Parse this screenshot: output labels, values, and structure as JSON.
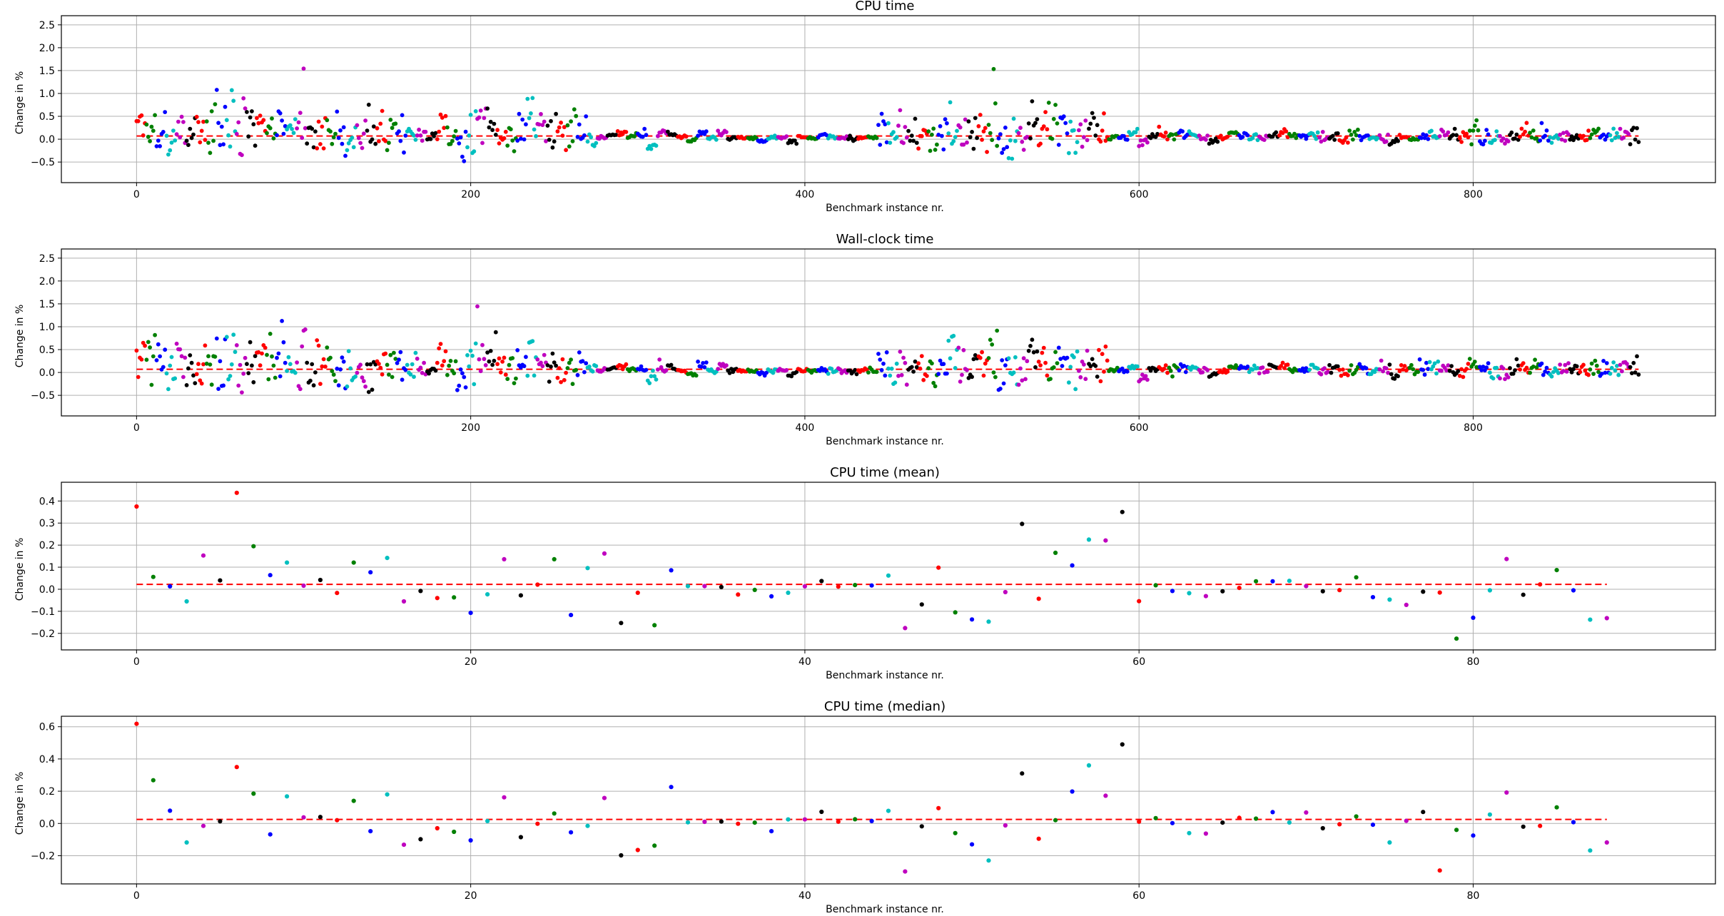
{
  "colors": {
    "palette": [
      "#ff0000",
      "#008000",
      "#0000ff",
      "#00bfbf",
      "#bf00bf",
      "#000000"
    ],
    "reference_line": "#ff0000",
    "grid": "#b0b0b0"
  },
  "chart_data": [
    {
      "type": "scatter",
      "title": "CPU time",
      "xlabel": "Benchmark instance nr.",
      "ylabel": "Change in %",
      "xlim": [
        -45,
        945
      ],
      "ylim": [
        -0.95,
        2.7
      ],
      "xticks": [
        0,
        200,
        400,
        600,
        800
      ],
      "yticks": [
        -0.5,
        0.0,
        0.5,
        1.0,
        1.5,
        2.0,
        2.5
      ],
      "ytick_labels": [
        "−0.5",
        "0.0",
        "0.5",
        "1.0",
        "1.5",
        "2.0",
        "2.5"
      ],
      "grid": true,
      "reference_line": 0.07,
      "n_points": 900,
      "groups": 150,
      "group_size": 6,
      "color_cycle": [
        "#ff0000",
        "#008000",
        "#0000ff",
        "#00bfbf",
        "#bf00bf",
        "#000000"
      ],
      "group_means": [
        0.47,
        0.26,
        0.26,
        0.03,
        0.21,
        0.19,
        0.14,
        0.18,
        0.39,
        0.26,
        0.22,
        0.17,
        0.19,
        0.18,
        0.26,
        0.11,
        0.24,
        -0.01,
        0.13,
        0.15,
        0.06,
        -0.05,
        0.13,
        0.15,
        0.21,
        0.14,
        0.14,
        0.1,
        0.16,
        0.02,
        0.12,
        -0.03,
        -0.06,
        0.17,
        0.3,
        0.35,
        0.1,
        0.0,
        0.23,
        0.49,
        0.28,
        0.17,
        0.16,
        0.21,
        0.17,
        0.02,
        0.06,
        0.09,
        0.13,
        0.06,
        0.08,
        -0.15,
        0.09,
        0.13,
        0.04,
        -0.04,
        0.13,
        0.03,
        0.13,
        0.02,
        0.03,
        0.03,
        -0.03,
        0.05,
        0.04,
        -0.05,
        0.03,
        0.02,
        0.07,
        0.04,
        0.04,
        -0.01,
        0.04,
        0.05,
        0.2,
        0.03,
        0.04,
        0.02,
        0.08,
        0.06,
        0.08,
        0.35,
        0.21,
        0.11,
        0.12,
        0.21,
        -0.01,
        0.02,
        0.0,
        0.3,
        0.2,
        0.26,
        0.3,
        0.05,
        0.07,
        0.26,
        0.17,
        0.04,
        0.04,
        0.11,
        -0.1,
        0.07,
        0.08,
        0.05,
        0.1,
        0.07,
        0.04,
        -0.06,
        0.03,
        0.13,
        0.07,
        0.09,
        0.04,
        0.12,
        0.13,
        0.09,
        0.03,
        0.09,
        0.01,
        0.07,
        -0.04,
        0.09,
        0.06,
        0.02,
        0.04,
        -0.05,
        0.06,
        0.05,
        0.06,
        0.1,
        0.1,
        0.05,
        0.09,
        0.11,
        0.04,
        0.05,
        0.0,
        0.05,
        0.1,
        0.09,
        0.09,
        0.01,
        0.06,
        0.07,
        0.06,
        0.08,
        0.06,
        0.08,
        0.09,
        0.07
      ],
      "group_spreads": [
        0.39,
        0.43,
        0.41,
        0.33,
        0.38,
        0.33,
        0.33,
        0.34,
        0.53,
        0.6,
        0.48,
        0.42,
        0.35,
        0.33,
        0.36,
        0.31,
        0.53,
        0.27,
        0.32,
        0.28,
        0.4,
        0.26,
        0.38,
        0.41,
        0.34,
        0.31,
        0.39,
        0.24,
        0.16,
        0.09,
        0.36,
        0.35,
        0.33,
        0.4,
        0.39,
        0.43,
        0.28,
        0.31,
        0.4,
        0.5,
        0.3,
        0.33,
        0.3,
        0.35,
        0.35,
        0.2,
        0.04,
        0.02,
        0.04,
        0.03,
        0.05,
        0.06,
        0.08,
        0.06,
        0.04,
        0.05,
        0.05,
        0.03,
        0.05,
        0.03,
        0.02,
        0.03,
        0.03,
        0.04,
        0.03,
        0.04,
        0.03,
        0.02,
        0.04,
        0.04,
        0.04,
        0.04,
        0.03,
        0.05,
        0.28,
        0.28,
        0.31,
        0.24,
        0.35,
        0.35,
        0.32,
        0.45,
        0.36,
        0.38,
        0.35,
        0.39,
        0.35,
        0.38,
        0.33,
        0.42,
        0.41,
        0.39,
        0.48,
        0.32,
        0.29,
        0.28,
        0.34,
        0.06,
        0.04,
        0.05,
        0.07,
        0.04,
        0.1,
        0.09,
        0.07,
        0.05,
        0.06,
        0.06,
        0.06,
        0.03,
        0.06,
        0.09,
        0.06,
        0.06,
        0.07,
        0.06,
        0.06,
        0.06,
        0.05,
        0.09,
        0.05,
        0.09,
        0.07,
        0.06,
        0.09,
        0.07,
        0.07,
        0.08,
        0.09,
        0.1,
        0.09,
        0.08,
        0.14,
        0.17,
        0.15,
        0.14,
        0.13,
        0.12,
        0.14,
        0.16,
        0.12,
        0.13,
        0.11,
        0.13,
        0.12,
        0.14,
        0.15,
        0.13,
        0.12,
        0.16
      ]
    },
    {
      "type": "scatter",
      "title": "Wall-clock time",
      "xlabel": "Benchmark instance nr.",
      "ylabel": "Change in %",
      "xlim": [
        -45,
        945
      ],
      "ylim": [
        -0.95,
        2.7
      ],
      "xticks": [
        0,
        200,
        400,
        600,
        800
      ],
      "yticks": [
        -0.5,
        0.0,
        0.5,
        1.0,
        1.5,
        2.0,
        2.5
      ],
      "ytick_labels": [
        "−0.5",
        "0.0",
        "0.5",
        "1.0",
        "1.5",
        "2.0",
        "2.5"
      ],
      "grid": true,
      "reference_line": 0.07,
      "n_points": 900,
      "groups": 150,
      "group_size": 6,
      "color_cycle": [
        "#ff0000",
        "#008000",
        "#0000ff",
        "#00bfbf",
        "#bf00bf",
        "#000000"
      ],
      "group_means": [
        0.46,
        0.27,
        0.25,
        0.05,
        0.2,
        0.19,
        0.15,
        0.2,
        0.4,
        0.26,
        0.24,
        0.17,
        0.19,
        0.18,
        0.27,
        0.11,
        0.25,
        0.0,
        0.14,
        0.14,
        0.06,
        -0.04,
        0.13,
        0.16,
        0.21,
        0.15,
        0.14,
        0.1,
        0.16,
        0.03,
        0.12,
        -0.03,
        -0.05,
        0.17,
        0.3,
        0.35,
        0.1,
        0.01,
        0.24,
        0.48,
        0.28,
        0.17,
        0.17,
        0.21,
        0.16,
        0.03,
        0.06,
        0.09,
        0.13,
        0.06,
        0.08,
        -0.14,
        0.09,
        0.13,
        0.04,
        -0.03,
        0.13,
        0.04,
        0.13,
        0.03,
        0.03,
        0.03,
        -0.02,
        0.05,
        0.05,
        -0.04,
        0.03,
        0.03,
        0.07,
        0.04,
        0.04,
        0.0,
        0.04,
        0.05,
        0.2,
        0.04,
        0.04,
        0.03,
        0.08,
        0.07,
        0.08,
        0.35,
        0.21,
        0.12,
        0.12,
        0.22,
        0.0,
        0.02,
        0.01,
        0.3,
        0.2,
        0.26,
        0.3,
        0.06,
        0.07,
        0.25,
        0.17,
        0.05,
        0.04,
        0.11,
        -0.1,
        0.07,
        0.08,
        0.05,
        0.1,
        0.08,
        0.05,
        -0.05,
        0.04,
        0.13,
        0.07,
        0.09,
        0.05,
        0.12,
        0.13,
        0.09,
        0.04,
        0.09,
        0.02,
        0.07,
        -0.04,
        0.09,
        0.07,
        0.03,
        0.04,
        -0.04,
        0.06,
        0.05,
        0.06,
        0.1,
        0.1,
        0.05,
        0.09,
        0.11,
        0.05,
        0.05,
        0.0,
        0.05,
        0.1,
        0.09,
        0.09,
        0.02,
        0.06,
        0.07,
        0.06,
        0.08,
        0.06,
        0.08,
        0.09,
        0.07
      ],
      "group_spreads": [
        0.4,
        0.44,
        0.42,
        0.34,
        0.39,
        0.34,
        0.34,
        0.35,
        0.54,
        0.6,
        0.49,
        0.43,
        0.36,
        0.34,
        0.37,
        0.32,
        0.54,
        0.28,
        0.33,
        0.29,
        0.41,
        0.27,
        0.39,
        0.42,
        0.35,
        0.32,
        0.4,
        0.25,
        0.17,
        0.1,
        0.37,
        0.36,
        0.34,
        0.41,
        0.4,
        0.44,
        0.29,
        0.32,
        0.41,
        0.5,
        0.31,
        0.34,
        0.31,
        0.36,
        0.36,
        0.21,
        0.05,
        0.03,
        0.05,
        0.04,
        0.06,
        0.07,
        0.09,
        0.07,
        0.05,
        0.06,
        0.06,
        0.04,
        0.06,
        0.04,
        0.03,
        0.04,
        0.04,
        0.05,
        0.04,
        0.05,
        0.04,
        0.03,
        0.05,
        0.05,
        0.05,
        0.05,
        0.04,
        0.06,
        0.29,
        0.29,
        0.32,
        0.25,
        0.36,
        0.36,
        0.33,
        0.46,
        0.37,
        0.39,
        0.36,
        0.4,
        0.36,
        0.39,
        0.34,
        0.43,
        0.42,
        0.4,
        0.49,
        0.33,
        0.3,
        0.29,
        0.35,
        0.07,
        0.05,
        0.06,
        0.08,
        0.05,
        0.11,
        0.1,
        0.08,
        0.06,
        0.07,
        0.07,
        0.07,
        0.04,
        0.07,
        0.1,
        0.07,
        0.07,
        0.08,
        0.07,
        0.07,
        0.07,
        0.06,
        0.1,
        0.06,
        0.1,
        0.08,
        0.07,
        0.1,
        0.08,
        0.08,
        0.09,
        0.1,
        0.11,
        0.1,
        0.09,
        0.15,
        0.18,
        0.16,
        0.15,
        0.14,
        0.13,
        0.15,
        0.17,
        0.13,
        0.14,
        0.12,
        0.14,
        0.13,
        0.15,
        0.16,
        0.14,
        0.13,
        0.17
      ]
    },
    {
      "type": "scatter",
      "title": "CPU time (mean)",
      "xlabel": "Benchmark instance nr.",
      "ylabel": "Change in %",
      "xlim": [
        -4.5,
        94.5
      ],
      "ylim": [
        -0.275,
        0.485
      ],
      "xticks": [
        0,
        20,
        40,
        60,
        80
      ],
      "yticks": [
        -0.2,
        -0.1,
        0.0,
        0.1,
        0.2,
        0.3,
        0.4
      ],
      "ytick_labels": [
        "−0.2",
        "−0.1",
        "0.0",
        "0.1",
        "0.2",
        "0.3",
        "0.4"
      ],
      "grid": true,
      "reference_line": 0.022,
      "color_cycle": [
        "#ff0000",
        "#008000",
        "#0000ff",
        "#00bfbf",
        "#bf00bf",
        "#000000"
      ],
      "values": [
        0.375,
        0.056,
        0.013,
        -0.055,
        0.153,
        0.04,
        0.437,
        0.195,
        0.064,
        0.121,
        0.016,
        0.042,
        -0.017,
        0.121,
        0.077,
        0.142,
        -0.055,
        -0.008,
        -0.04,
        -0.037,
        -0.107,
        -0.023,
        0.136,
        -0.028,
        0.021,
        0.136,
        -0.117,
        0.096,
        0.162,
        -0.153,
        -0.016,
        -0.163,
        0.086,
        0.014,
        0.014,
        0.01,
        -0.024,
        -0.003,
        -0.032,
        -0.016,
        0.013,
        0.037,
        0.012,
        0.019,
        0.017,
        0.062,
        -0.176,
        -0.069,
        0.098,
        -0.105,
        -0.137,
        -0.147,
        -0.013,
        0.296,
        -0.043,
        0.165,
        0.108,
        0.225,
        0.221,
        0.35,
        -0.054,
        0.018,
        -0.008,
        -0.018,
        -0.031,
        -0.009,
        0.006,
        0.036,
        0.036,
        0.038,
        0.014,
        -0.009,
        -0.004,
        0.054,
        -0.036,
        -0.047,
        -0.071,
        -0.011,
        -0.015,
        -0.224,
        -0.129,
        -0.005,
        0.137,
        -0.025,
        0.022,
        0.087,
        -0.005,
        -0.138,
        -0.131
      ]
    },
    {
      "type": "scatter",
      "title": "CPU time (median)",
      "xlabel": "Benchmark instance nr.",
      "ylabel": "Change in %",
      "xlim": [
        -4.5,
        94.5
      ],
      "ylim": [
        -0.375,
        0.665
      ],
      "xticks": [
        0,
        20,
        40,
        60,
        80
      ],
      "yticks": [
        -0.2,
        0.0,
        0.2,
        0.4,
        0.6
      ],
      "ytick_labels": [
        "−0.2",
        "0.0",
        "0.2",
        "0.4",
        "0.6"
      ],
      "grid": true,
      "reference_line": 0.025,
      "color_cycle": [
        "#ff0000",
        "#008000",
        "#0000ff",
        "#00bfbf",
        "#bf00bf",
        "#000000"
      ],
      "values": [
        0.618,
        0.268,
        0.079,
        -0.118,
        -0.015,
        0.013,
        0.35,
        0.185,
        -0.068,
        0.168,
        0.038,
        0.04,
        0.02,
        0.14,
        -0.048,
        0.18,
        -0.132,
        -0.098,
        -0.03,
        -0.052,
        -0.105,
        0.015,
        0.162,
        -0.085,
        -0.002,
        0.062,
        -0.055,
        -0.015,
        0.158,
        -0.198,
        -0.165,
        -0.138,
        0.226,
        0.007,
        0.01,
        0.012,
        -0.002,
        0.005,
        -0.048,
        0.025,
        0.025,
        0.072,
        0.011,
        0.026,
        0.015,
        0.078,
        -0.298,
        -0.018,
        0.095,
        -0.06,
        -0.13,
        -0.23,
        -0.012,
        0.31,
        -0.095,
        0.02,
        0.198,
        0.36,
        0.172,
        0.49,
        0.011,
        0.033,
        0.002,
        -0.06,
        -0.063,
        0.005,
        0.035,
        0.03,
        0.07,
        0.006,
        0.068,
        -0.03,
        -0.005,
        0.043,
        -0.008,
        -0.118,
        0.016,
        0.071,
        -0.292,
        -0.04,
        -0.075,
        0.055,
        0.192,
        -0.02,
        -0.015,
        0.1,
        0.008,
        -0.168,
        -0.118
      ]
    }
  ]
}
